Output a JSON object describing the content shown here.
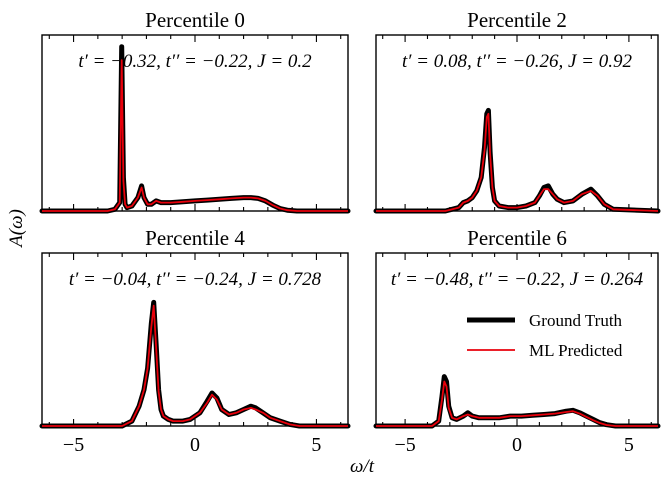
{
  "chart_data": {
    "type": "line",
    "xlabel": "ω/t",
    "ylabel": "A(ω)",
    "xlim": [
      -6.3,
      6.3
    ],
    "xticks": [
      -5,
      0,
      5
    ],
    "xtick_labels": [
      "−5",
      "0",
      "5"
    ],
    "ylim": [
      0,
      1.05
    ],
    "legend": {
      "placement": "right",
      "entries": [
        {
          "name": "Ground Truth",
          "color": "#000000"
        },
        {
          "name": "ML Predicted",
          "color": "#e8000b"
        }
      ]
    },
    "series_colors": {
      "ground_truth": "#000000",
      "ml_predicted": "#e8000b"
    },
    "panels": [
      {
        "title": "Percentile 0",
        "annotation": "t′ = −0.32, t′′ = −0.22, J = 0.2",
        "x": [
          -6.3,
          -3.6,
          -3.3,
          -3.1,
          -3.02,
          -2.95,
          -2.88,
          -2.8,
          -2.6,
          -2.35,
          -2.2,
          -2.1,
          -1.95,
          -1.8,
          -1.6,
          -1.4,
          -1.2,
          -1.0,
          -0.5,
          0,
          0.5,
          1.0,
          1.5,
          2.0,
          2.3,
          2.6,
          2.9,
          3.2,
          3.5,
          3.8,
          4.2,
          6.3
        ],
        "ground_truth": [
          0,
          0,
          0.01,
          0.05,
          0.98,
          0.2,
          0.04,
          0.02,
          0.03,
          0.08,
          0.15,
          0.08,
          0.04,
          0.04,
          0.06,
          0.05,
          0.05,
          0.05,
          0.055,
          0.06,
          0.065,
          0.07,
          0.075,
          0.08,
          0.08,
          0.075,
          0.06,
          0.035,
          0.015,
          0.005,
          0,
          0
        ],
        "ml_predicted": [
          0,
          0,
          0.01,
          0.05,
          0.9,
          0.18,
          0.04,
          0.02,
          0.03,
          0.08,
          0.14,
          0.08,
          0.04,
          0.04,
          0.06,
          0.05,
          0.05,
          0.05,
          0.055,
          0.06,
          0.065,
          0.07,
          0.075,
          0.08,
          0.08,
          0.075,
          0.06,
          0.035,
          0.015,
          0.005,
          0,
          0
        ]
      },
      {
        "title": "Percentile 2",
        "annotation": "t′ = 0.08, t′′ = −0.26, J = 0.92",
        "x": [
          -6.3,
          -3.2,
          -2.6,
          -2.4,
          -2.2,
          -2.0,
          -1.8,
          -1.6,
          -1.45,
          -1.35,
          -1.28,
          -1.2,
          -1.1,
          -1.0,
          -0.8,
          -0.4,
          0,
          0.4,
          0.8,
          1.0,
          1.2,
          1.4,
          1.6,
          1.8,
          2.1,
          2.5,
          2.9,
          3.3,
          3.6,
          3.9,
          4.3,
          6.3
        ],
        "ground_truth": [
          0,
          0,
          0.02,
          0.05,
          0.06,
          0.08,
          0.12,
          0.2,
          0.38,
          0.58,
          0.6,
          0.35,
          0.14,
          0.06,
          0.03,
          0.02,
          0.02,
          0.03,
          0.05,
          0.09,
          0.14,
          0.15,
          0.1,
          0.07,
          0.05,
          0.06,
          0.1,
          0.13,
          0.09,
          0.04,
          0.01,
          0
        ],
        "ml_predicted": [
          0,
          0,
          0.02,
          0.05,
          0.06,
          0.08,
          0.12,
          0.2,
          0.36,
          0.56,
          0.58,
          0.34,
          0.14,
          0.06,
          0.03,
          0.02,
          0.02,
          0.03,
          0.05,
          0.09,
          0.13,
          0.13,
          0.1,
          0.07,
          0.05,
          0.06,
          0.1,
          0.12,
          0.09,
          0.04,
          0.01,
          0
        ]
      },
      {
        "title": "Percentile 4",
        "annotation": "t′ = −0.04, t′′ = −0.24, J = 0.728",
        "x": [
          -6.3,
          -3.0,
          -2.6,
          -2.3,
          -2.1,
          -1.95,
          -1.8,
          -1.7,
          -1.6,
          -1.5,
          -1.4,
          -1.3,
          -1.1,
          -0.9,
          -0.5,
          -0.2,
          0.2,
          0.5,
          0.7,
          0.9,
          1.1,
          1.4,
          1.7,
          2.0,
          2.3,
          2.5,
          2.8,
          3.1,
          3.5,
          3.9,
          4.3,
          6.3
        ],
        "ground_truth": [
          0,
          0,
          0.03,
          0.12,
          0.22,
          0.35,
          0.62,
          0.75,
          0.5,
          0.22,
          0.1,
          0.06,
          0.04,
          0.03,
          0.03,
          0.04,
          0.08,
          0.15,
          0.2,
          0.17,
          0.1,
          0.07,
          0.08,
          0.1,
          0.12,
          0.11,
          0.08,
          0.05,
          0.03,
          0.01,
          0,
          0
        ],
        "ml_predicted": [
          0,
          0,
          0.03,
          0.12,
          0.22,
          0.35,
          0.6,
          0.73,
          0.48,
          0.21,
          0.1,
          0.06,
          0.04,
          0.03,
          0.03,
          0.04,
          0.08,
          0.14,
          0.19,
          0.16,
          0.1,
          0.07,
          0.08,
          0.1,
          0.11,
          0.1,
          0.08,
          0.05,
          0.03,
          0.01,
          0,
          0
        ]
      },
      {
        "title": "Percentile 6",
        "annotation": "t′ = −0.48, t′′ = −0.22, J = 0.264",
        "x": [
          -6.3,
          -3.8,
          -3.5,
          -3.35,
          -3.25,
          -3.15,
          -3.05,
          -2.9,
          -2.7,
          -2.4,
          -2.2,
          -2.0,
          -1.7,
          -1.3,
          -0.8,
          -0.3,
          0.2,
          0.7,
          1.2,
          1.7,
          2.2,
          2.5,
          2.8,
          3.1,
          3.4,
          3.7,
          4.0,
          4.4,
          6.3
        ],
        "ground_truth": [
          0,
          0,
          0.03,
          0.18,
          0.3,
          0.27,
          0.12,
          0.05,
          0.04,
          0.06,
          0.08,
          0.06,
          0.05,
          0.05,
          0.05,
          0.06,
          0.06,
          0.065,
          0.07,
          0.075,
          0.09,
          0.095,
          0.08,
          0.06,
          0.04,
          0.02,
          0.008,
          0,
          0
        ],
        "ml_predicted": [
          0,
          0,
          0.03,
          0.16,
          0.27,
          0.24,
          0.11,
          0.05,
          0.04,
          0.06,
          0.07,
          0.06,
          0.05,
          0.05,
          0.05,
          0.06,
          0.06,
          0.065,
          0.07,
          0.075,
          0.085,
          0.09,
          0.075,
          0.055,
          0.035,
          0.018,
          0.006,
          0,
          0
        ]
      }
    ]
  }
}
